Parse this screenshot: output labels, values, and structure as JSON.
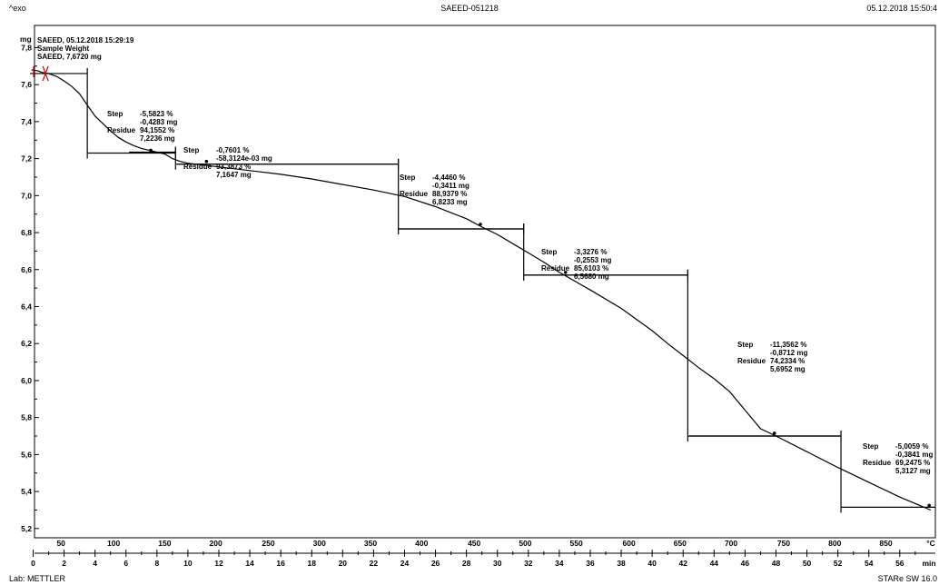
{
  "header": {
    "left": "^exo",
    "center": "SAEED-051218",
    "right": "05.12.2018 15:50:4"
  },
  "footer": {
    "left": "Lab: METTLER",
    "right": "STARe SW 16.0"
  },
  "chart_data": {
    "type": "line",
    "title": "SAEED-051218",
    "ylabel": "mg",
    "xlabel_time": "min",
    "xlabel_temp": "°C",
    "ylim": [
      5.15,
      7.92
    ],
    "xlim_time": [
      -0.2,
      58.3
    ],
    "y_ticks": [
      "7,8",
      "7,6",
      "7,4",
      "7,2",
      "7,0",
      "6,8",
      "6,6",
      "6,4",
      "6,2",
      "6,0",
      "5,8",
      "5,6",
      "5,4",
      "5,2"
    ],
    "y_tick_values": [
      7.8,
      7.6,
      7.4,
      7.2,
      7.0,
      6.8,
      6.6,
      6.4,
      6.2,
      6.0,
      5.8,
      5.6,
      5.4,
      5.2
    ],
    "time_ticks": [
      "0",
      "2",
      "4",
      "6",
      "8",
      "10",
      "12",
      "14",
      "16",
      "18",
      "20",
      "22",
      "24",
      "26",
      "28",
      "30",
      "32",
      "34",
      "36",
      "38",
      "40",
      "42",
      "44",
      "46",
      "48",
      "50",
      "52",
      "54",
      "56"
    ],
    "time_tick_values": [
      0,
      2,
      4,
      6,
      8,
      10,
      12,
      14,
      16,
      18,
      20,
      22,
      24,
      26,
      28,
      30,
      32,
      34,
      36,
      38,
      40,
      42,
      44,
      46,
      48,
      50,
      52,
      54,
      56
    ],
    "temp_ticks": [
      {
        "label": "50",
        "t": 1.8
      },
      {
        "label": "100",
        "t": 5.2
      },
      {
        "label": "150",
        "t": 8.5
      },
      {
        "label": "200",
        "t": 11.8
      },
      {
        "label": "250",
        "t": 15.2
      },
      {
        "label": "300",
        "t": 18.5
      },
      {
        "label": "350",
        "t": 21.8
      },
      {
        "label": "400",
        "t": 25.1
      },
      {
        "label": "450",
        "t": 28.5
      },
      {
        "label": "500",
        "t": 31.8
      },
      {
        "label": "550",
        "t": 35.1
      },
      {
        "label": "600",
        "t": 38.5
      },
      {
        "label": "650",
        "t": 41.8
      },
      {
        "label": "700",
        "t": 45.1
      },
      {
        "label": "750",
        "t": 48.5
      },
      {
        "label": "800",
        "t": 51.8
      },
      {
        "label": "850",
        "t": 55.1
      }
    ],
    "info": [
      "SAEED, 05.12.2018 15:29:19",
      "Sample Weight",
      "SAEED, 7,6720 mg"
    ],
    "series": [
      {
        "x": [
          -0.1,
          0.3,
          0.6,
          1.0,
          1.5,
          2.0,
          2.5,
          3.0,
          3.5,
          4.0,
          4.5,
          5.0,
          5.5,
          6.0,
          6.5,
          7.0,
          7.5,
          8.0,
          8.5,
          9.0,
          9.5,
          10.0,
          11.0,
          12.0,
          14.0,
          16.0,
          18.0,
          20.0,
          22.0,
          24.0,
          26.0,
          28.0,
          29.0,
          30.0,
          31.0,
          32.0,
          33.0,
          34.0,
          36.0,
          38.0,
          40.0,
          41.0,
          42.0,
          43.0,
          44.0,
          45.0,
          46.0,
          47.0,
          48.0,
          50.0,
          52.0,
          54.0,
          56.0,
          58.0
        ],
        "y": [
          7.68,
          7.675,
          7.665,
          7.66,
          7.645,
          7.62,
          7.59,
          7.55,
          7.49,
          7.43,
          7.39,
          7.35,
          7.315,
          7.29,
          7.27,
          7.255,
          7.245,
          7.235,
          7.225,
          7.2,
          7.185,
          7.175,
          7.165,
          7.155,
          7.135,
          7.115,
          7.09,
          7.06,
          7.03,
          6.995,
          6.94,
          6.875,
          6.83,
          6.79,
          6.74,
          6.69,
          6.64,
          6.585,
          6.49,
          6.39,
          6.27,
          6.2,
          6.135,
          6.07,
          6.01,
          5.94,
          5.84,
          5.74,
          5.7,
          5.615,
          5.53,
          5.45,
          5.37,
          5.3
        ]
      }
    ],
    "steps": [
      {
        "step": "-5,5823 %",
        "step_mg": "-0,4283 mg",
        "residue": "94,1552 %",
        "residue_mg": "7,2236 mg",
        "upper": 7.66,
        "lower": 7.23,
        "t_start": -0.2,
        "t_vert": 3.5,
        "t_end": 9.2,
        "marker_t": 7.6,
        "marker_y": 7.245
      },
      {
        "step": "-0,7601 %",
        "step_mg": "-58,3124e-03 mg",
        "residue": "93,3873 %",
        "residue_mg": "7,1647 mg",
        "upper": 7.235,
        "lower": 7.17,
        "t_start": 6.2,
        "t_vert": 9.2,
        "t_end": 23.6,
        "marker_t": 11.2,
        "marker_y": 7.185
      },
      {
        "step": "-4,4460 %",
        "step_mg": "-0,3411 mg",
        "residue": "88,9379 %",
        "residue_mg": "6,8233 mg",
        "upper": 7.17,
        "lower": 6.82,
        "t_start": 9.3,
        "t_vert": 23.6,
        "t_end": 31.7,
        "marker_t": 28.9,
        "marker_y": 6.845
      },
      {
        "step": "-3,3276 %",
        "step_mg": "-0,2553 mg",
        "residue": "85,6103 %",
        "residue_mg": "6,5680 mg",
        "upper": 6.82,
        "lower": 6.57,
        "t_start": 23.6,
        "t_vert": 31.7,
        "t_end": 42.3,
        "marker_t": 34.4,
        "marker_y": 6.585
      },
      {
        "step": "-11,3562 %",
        "step_mg": "-0,8712 mg",
        "residue": "74,2334 %",
        "residue_mg": "5,6952 mg",
        "upper": 6.57,
        "lower": 5.7,
        "t_start": 31.7,
        "t_vert": 42.3,
        "t_end": 52.2,
        "marker_t": 47.9,
        "marker_y": 5.715
      },
      {
        "step": "-5,0059 %",
        "step_mg": "-0,3841 mg",
        "residue": "69,2475 %",
        "residue_mg": "5,3127 mg",
        "upper": 5.7,
        "lower": 5.315,
        "t_start": 42.3,
        "t_vert": 52.2,
        "t_end": 58.3,
        "marker_t": 57.9,
        "marker_y": 5.325
      }
    ]
  }
}
